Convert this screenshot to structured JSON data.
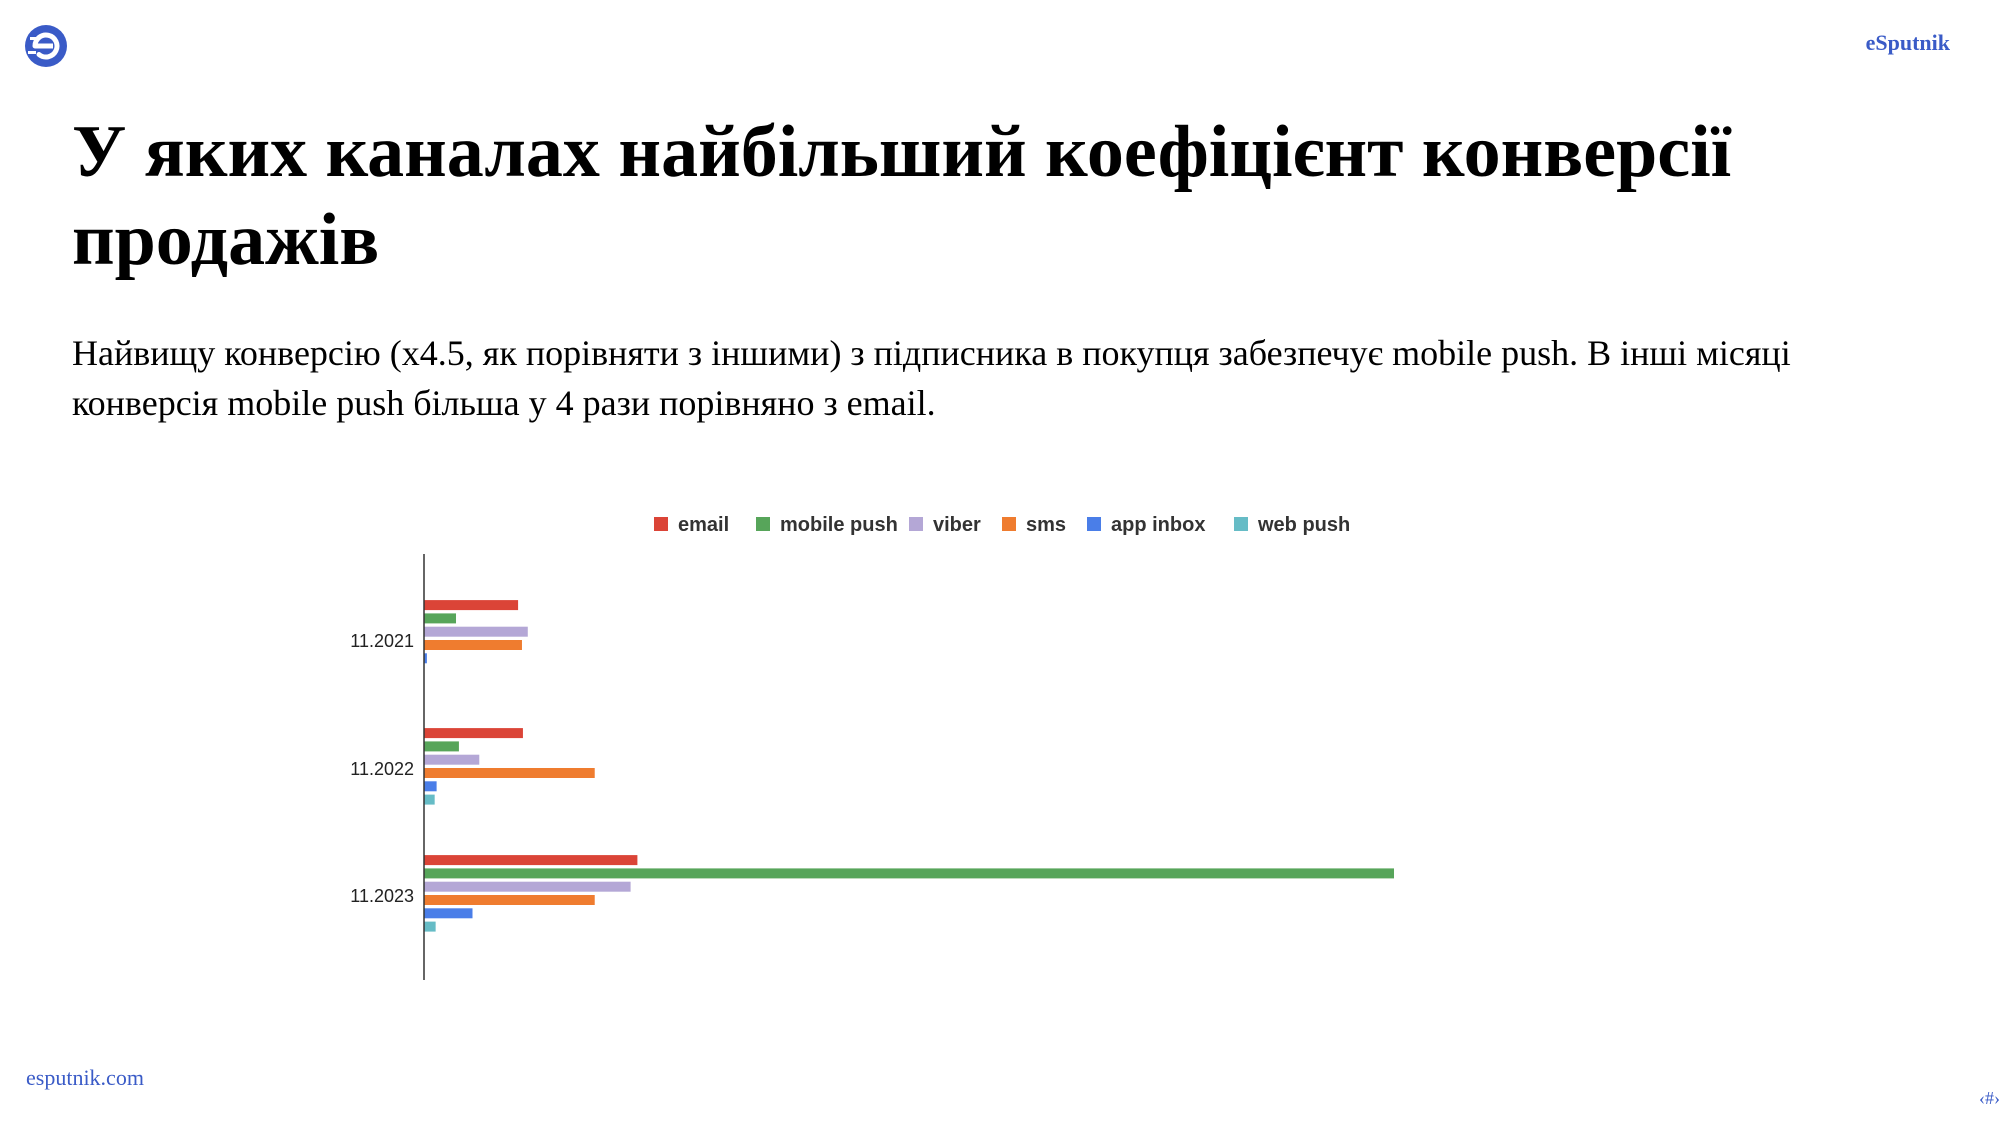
{
  "header": {
    "logo_icon": "esputnik-logo-icon",
    "brand": "eSputnik"
  },
  "slide": {
    "title": "У яких каналах найбільший коефіцієнт конверсії продажів",
    "subtitle": "Найвищу конверсію (x4.5, як порівняти з іншими) з підписника в покупця забезпечує mobile push. В інші місяці конверсія mobile push більша у 4 рази порівняно з email."
  },
  "footer": {
    "link": "esputnik.com",
    "page_number": "‹#›"
  },
  "chart_data": {
    "type": "bar",
    "orientation": "horizontal",
    "title": "",
    "xlabel": "",
    "ylabel": "",
    "legend_position": "top",
    "grid": false,
    "categories": [
      "11.2021",
      "11.2022",
      "11.2023"
    ],
    "xlim": [
      0,
      1
    ],
    "series": [
      {
        "name": "email",
        "color": "#db4437",
        "values": [
          0.097,
          0.102,
          0.22
        ]
      },
      {
        "name": "mobile push",
        "color": "#57a55a",
        "values": [
          0.033,
          0.036,
          1.0
        ]
      },
      {
        "name": "viber",
        "color": "#b4a7d6",
        "values": [
          0.107,
          0.057,
          0.213
        ]
      },
      {
        "name": "sms",
        "color": "#ef7c2f",
        "values": [
          0.101,
          0.176,
          0.176
        ]
      },
      {
        "name": "app inbox",
        "color": "#4a7ee8",
        "values": [
          0.003,
          0.013,
          0.05
        ]
      },
      {
        "name": "web push",
        "color": "#66bcc6",
        "values": [
          0.0,
          0.011,
          0.012
        ]
      }
    ]
  }
}
